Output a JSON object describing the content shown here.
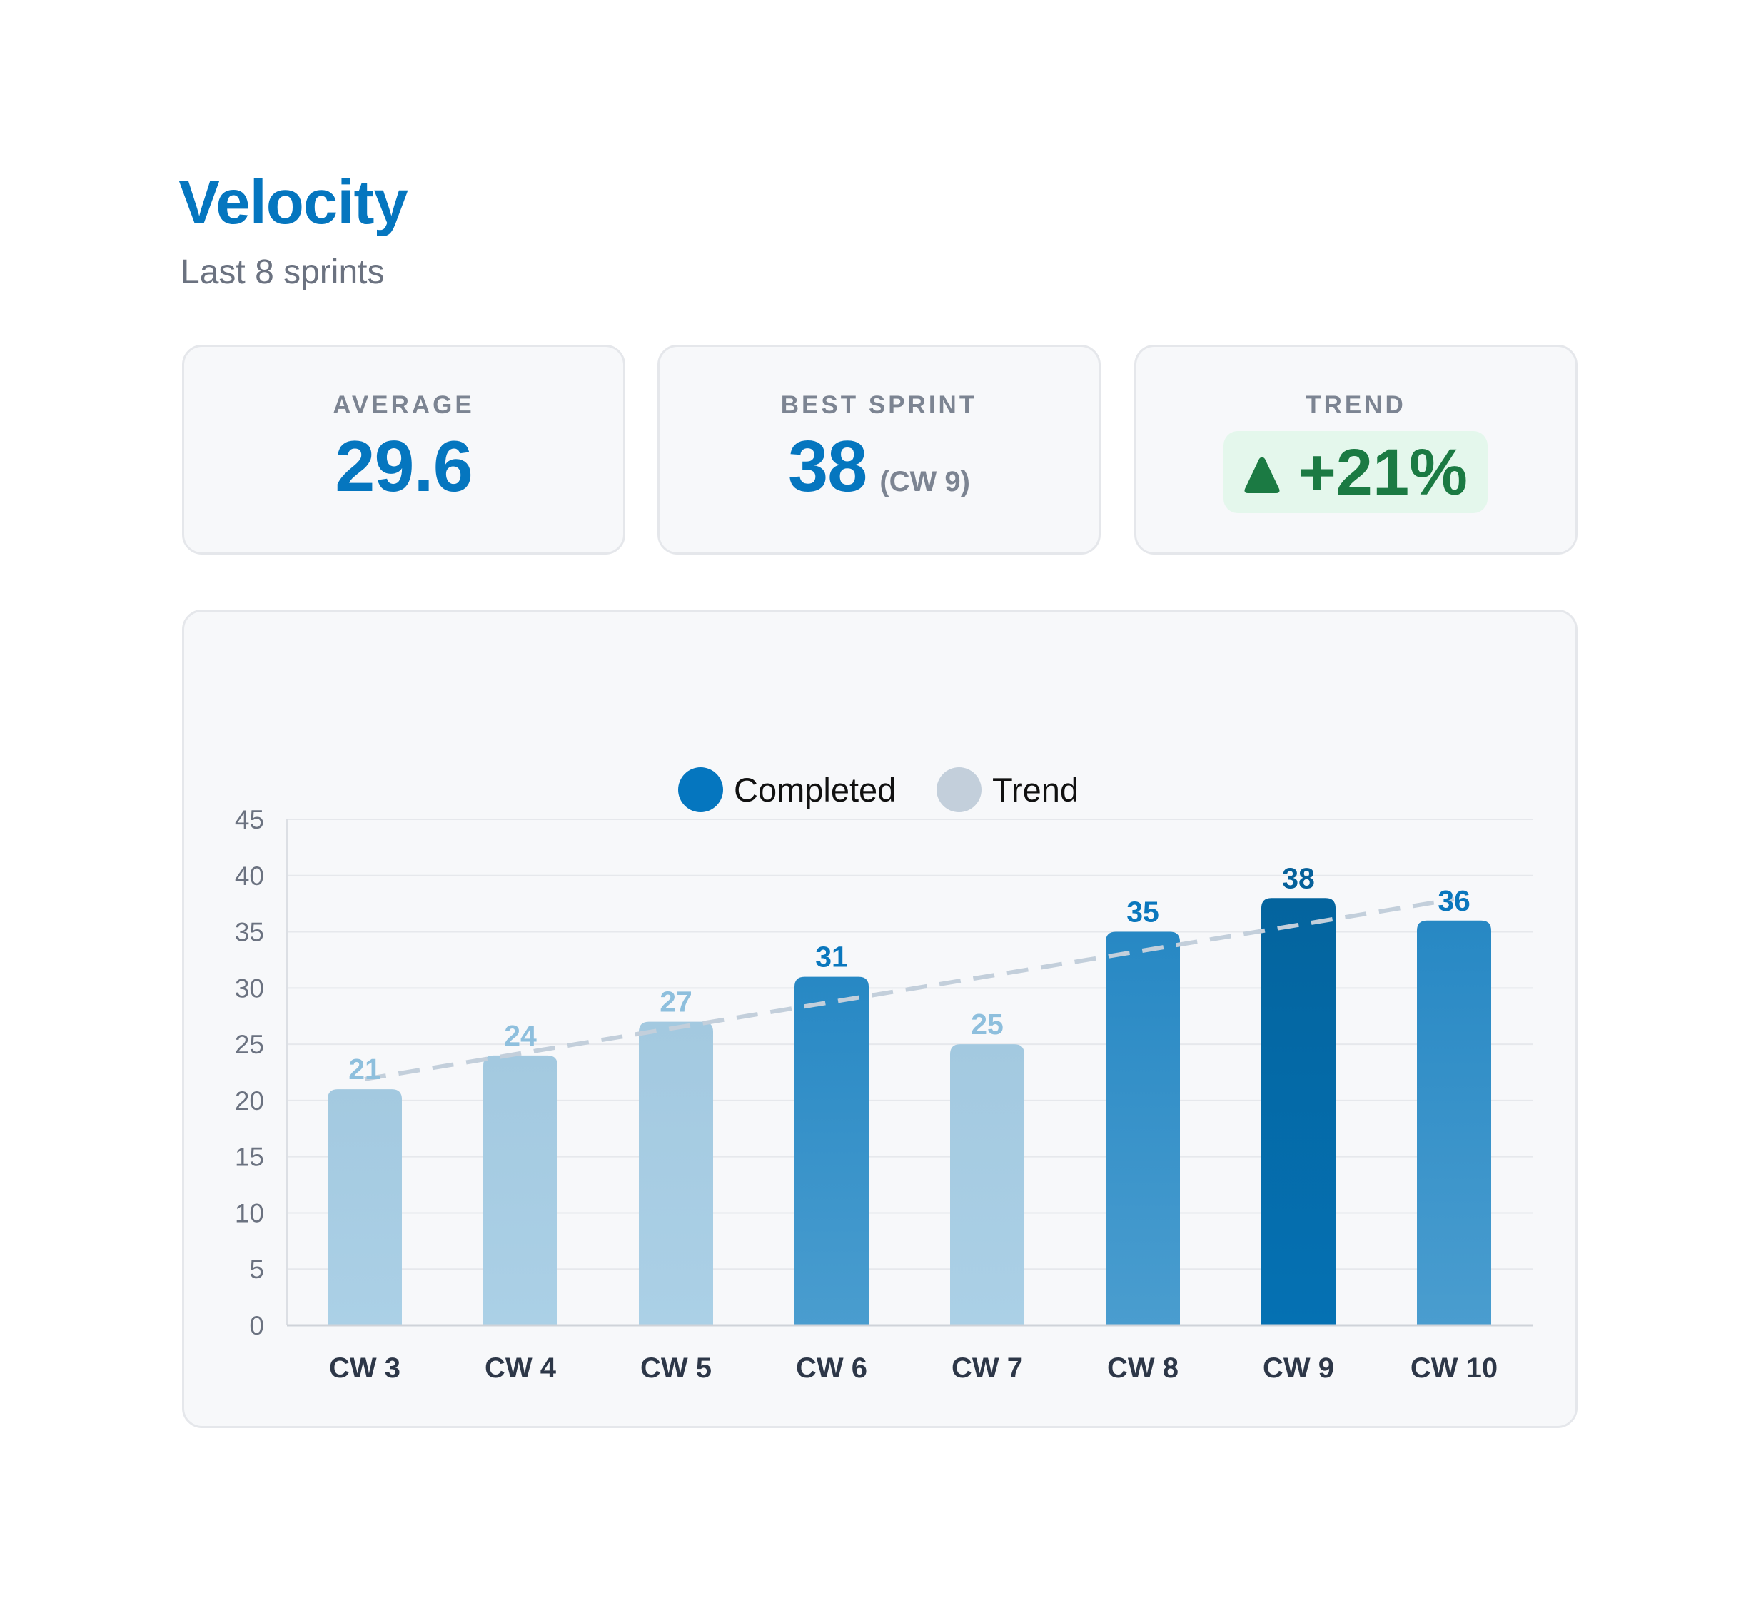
{
  "header": {
    "title": "Velocity",
    "subtitle": "Last 8 sprints"
  },
  "stats": {
    "average": {
      "label": "AVERAGE",
      "value": "29.6"
    },
    "best_sprint": {
      "label": "BEST SPRINT",
      "value": "38",
      "detail": "(CW 9)"
    },
    "trend": {
      "label": "TREND",
      "icon": "triangle-up-icon",
      "value": "+21%"
    }
  },
  "colors": {
    "accent": "#0576bf",
    "muted": "#7c8492",
    "positive": "#1b7a43",
    "positive_bg": "#e4f7ec",
    "bar_light": "#a6cbe2",
    "bar_medium": "#2788c4",
    "bar_dark": "#0469a6",
    "trend_line": "#c3cfdb"
  },
  "legend": [
    {
      "label": "Completed",
      "color": "#0576bf"
    },
    {
      "label": "Trend",
      "color": "#c3cfdb"
    }
  ],
  "chart_data": {
    "type": "bar",
    "title": "Velocity",
    "subtitle": "Last 8 sprints",
    "categories": [
      "CW 3",
      "CW 4",
      "CW 5",
      "CW 6",
      "CW 7",
      "CW 8",
      "CW 9",
      "CW 10"
    ],
    "series": [
      {
        "name": "Completed",
        "values": [
          21,
          24,
          27,
          31,
          25,
          35,
          38,
          36
        ]
      },
      {
        "name": "Trend",
        "type": "line",
        "style": "dashed",
        "values": [
          21.9,
          24.2,
          26.5,
          28.8,
          31.1,
          33.3,
          35.6,
          37.9
        ]
      }
    ],
    "bar_styles": [
      "light",
      "light",
      "light",
      "medium",
      "light",
      "medium",
      "dark",
      "medium"
    ],
    "xlabel": "",
    "ylabel": "",
    "ylim": [
      0,
      45
    ],
    "yticks": [
      0,
      5,
      10,
      15,
      20,
      25,
      30,
      35,
      40,
      45
    ],
    "grid": true,
    "legend_position": "top",
    "data_labels": true
  }
}
